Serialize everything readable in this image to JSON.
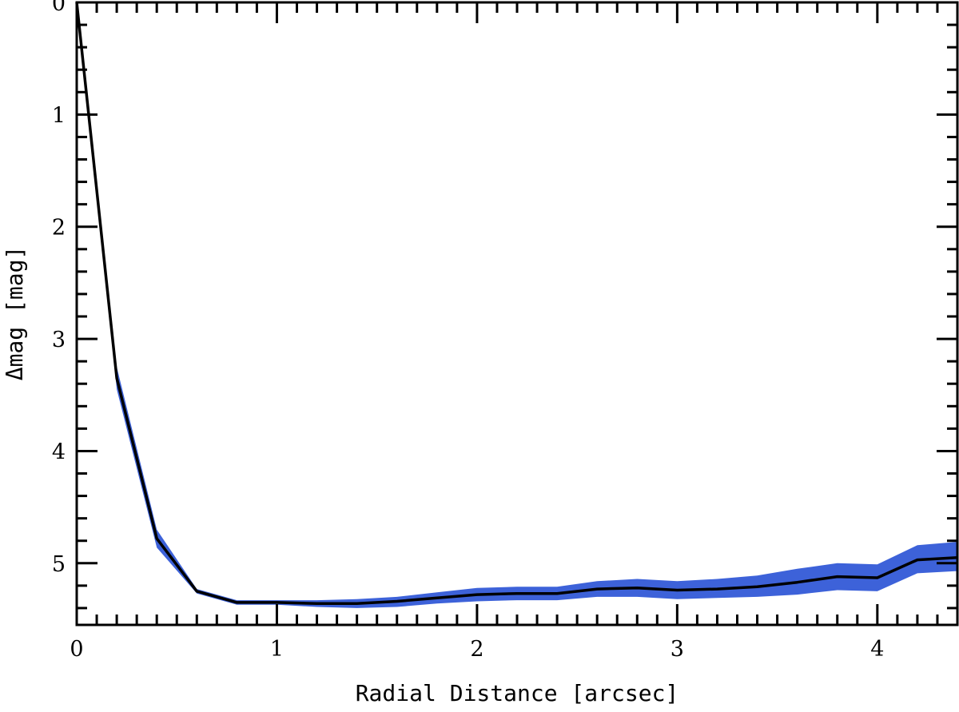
{
  "chart_data": {
    "type": "line",
    "title": "",
    "xlabel": "Radial Distance [arcsec]",
    "ylabel": "Δmag [mag]",
    "xlim": [
      0,
      4.4
    ],
    "ylim": [
      5.55,
      0
    ],
    "y_inverted": true,
    "grid": false,
    "x_ticks": [
      0,
      1,
      2,
      3,
      4
    ],
    "x_tick_labels": [
      "0",
      "1",
      "2",
      "3",
      "4"
    ],
    "y_ticks": [
      0,
      1,
      2,
      3,
      4,
      5
    ],
    "y_tick_labels": [
      "0",
      "1",
      "2",
      "3",
      "4",
      "5"
    ],
    "colors": {
      "line": "#000000",
      "band": "#3d62d9"
    },
    "series": [
      {
        "x": [
          0,
          0.2,
          0.4,
          0.6,
          0.8,
          1.0,
          1.2,
          1.4,
          1.6,
          1.8,
          2.0,
          2.2,
          2.4,
          2.6,
          2.8,
          3.0,
          3.2,
          3.4,
          3.6,
          3.8,
          4.0,
          4.2,
          4.4
        ],
        "y": [
          0.0,
          3.35,
          4.78,
          5.25,
          5.35,
          5.35,
          5.36,
          5.36,
          5.34,
          5.31,
          5.28,
          5.27,
          5.27,
          5.23,
          5.22,
          5.24,
          5.23,
          5.21,
          5.17,
          5.12,
          5.13,
          4.97,
          4.95
        ],
        "y_low": [
          0.0,
          3.45,
          4.86,
          5.27,
          5.37,
          5.37,
          5.39,
          5.4,
          5.39,
          5.36,
          5.34,
          5.33,
          5.33,
          5.3,
          5.3,
          5.32,
          5.31,
          5.3,
          5.28,
          5.24,
          5.25,
          5.09,
          5.07
        ],
        "y_high": [
          0.0,
          3.25,
          4.7,
          5.23,
          5.33,
          5.33,
          5.33,
          5.32,
          5.3,
          5.26,
          5.22,
          5.21,
          5.21,
          5.16,
          5.14,
          5.16,
          5.14,
          5.11,
          5.05,
          5.0,
          5.01,
          4.84,
          4.81
        ]
      }
    ]
  }
}
